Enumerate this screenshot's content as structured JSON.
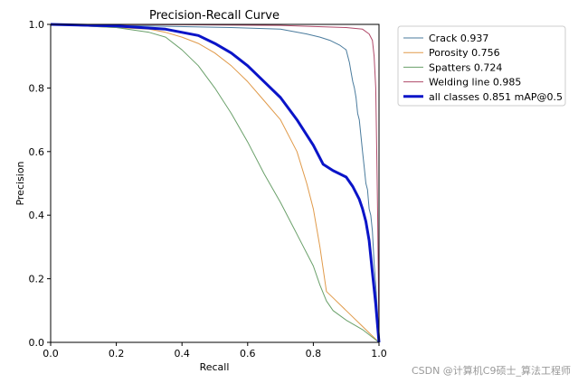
{
  "chart_data": {
    "type": "line",
    "title": "Precision-Recall Curve",
    "xlabel": "Recall",
    "ylabel": "Precision",
    "xlim": [
      0,
      1
    ],
    "ylim": [
      0,
      1
    ],
    "xticks": [
      "0.0",
      "0.2",
      "0.4",
      "0.6",
      "0.8",
      "1.0"
    ],
    "yticks": [
      "0.0",
      "0.2",
      "0.4",
      "0.6",
      "0.8",
      "1.0"
    ],
    "grid": false,
    "legend_position": "outside-top-right",
    "series": [
      {
        "name": "Crack 0.937",
        "color": "#4a7b9d",
        "width": 1,
        "x": [
          0,
          0.3,
          0.55,
          0.7,
          0.78,
          0.82,
          0.85,
          0.88,
          0.9,
          0.905,
          0.91,
          0.915,
          0.92,
          0.925,
          0.93,
          0.935,
          0.94,
          0.945,
          0.95,
          0.955,
          0.96,
          0.965,
          0.97,
          0.975,
          0.98,
          0.985,
          0.99,
          0.995,
          1.0
        ],
        "y": [
          1.0,
          0.995,
          0.99,
          0.985,
          0.97,
          0.96,
          0.95,
          0.935,
          0.92,
          0.9,
          0.88,
          0.85,
          0.82,
          0.8,
          0.77,
          0.72,
          0.7,
          0.65,
          0.6,
          0.55,
          0.5,
          0.48,
          0.42,
          0.4,
          0.35,
          0.25,
          0.18,
          0.1,
          0.0
        ]
      },
      {
        "name": "Porosity 0.756",
        "color": "#e09a4a",
        "width": 1,
        "x": [
          0,
          0.2,
          0.3,
          0.35,
          0.4,
          0.45,
          0.5,
          0.55,
          0.6,
          0.65,
          0.7,
          0.75,
          0.78,
          0.8,
          0.82,
          0.84,
          0.86,
          0.9,
          0.95,
          1.0
        ],
        "y": [
          1.0,
          0.99,
          0.985,
          0.975,
          0.96,
          0.94,
          0.91,
          0.87,
          0.82,
          0.76,
          0.7,
          0.6,
          0.5,
          0.42,
          0.3,
          0.16,
          0.14,
          0.1,
          0.05,
          0.0
        ]
      },
      {
        "name": "Spatters 0.724",
        "color": "#6aa06a",
        "width": 1,
        "x": [
          0,
          0.2,
          0.3,
          0.35,
          0.4,
          0.45,
          0.5,
          0.55,
          0.6,
          0.65,
          0.7,
          0.75,
          0.8,
          0.82,
          0.84,
          0.86,
          0.9,
          0.95,
          1.0
        ],
        "y": [
          1.0,
          0.99,
          0.975,
          0.96,
          0.92,
          0.87,
          0.8,
          0.72,
          0.63,
          0.53,
          0.44,
          0.34,
          0.24,
          0.18,
          0.13,
          0.1,
          0.07,
          0.04,
          0.0
        ]
      },
      {
        "name": "Welding line 0.985",
        "color": "#b04a6a",
        "width": 1,
        "x": [
          0,
          0.4,
          0.7,
          0.9,
          0.95,
          0.97,
          0.98,
          0.985,
          0.99,
          0.993,
          0.996,
          0.998,
          1.0
        ],
        "y": [
          1.0,
          0.999,
          0.997,
          0.99,
          0.985,
          0.97,
          0.95,
          0.9,
          0.8,
          0.6,
          0.4,
          0.2,
          0.0
        ]
      },
      {
        "name": "all classes 0.851 mAP@0.5",
        "color": "#0a14c8",
        "width": 3,
        "x": [
          0,
          0.2,
          0.35,
          0.45,
          0.5,
          0.55,
          0.6,
          0.65,
          0.7,
          0.75,
          0.8,
          0.83,
          0.86,
          0.88,
          0.9,
          0.92,
          0.94,
          0.95,
          0.96,
          0.97,
          0.98,
          0.99,
          1.0
        ],
        "y": [
          1.0,
          0.995,
          0.985,
          0.965,
          0.94,
          0.91,
          0.87,
          0.82,
          0.77,
          0.7,
          0.62,
          0.56,
          0.54,
          0.53,
          0.52,
          0.49,
          0.45,
          0.42,
          0.38,
          0.32,
          0.22,
          0.12,
          0.0
        ]
      }
    ]
  },
  "watermark": "CSDN @计算机C9硕士_算法工程师"
}
